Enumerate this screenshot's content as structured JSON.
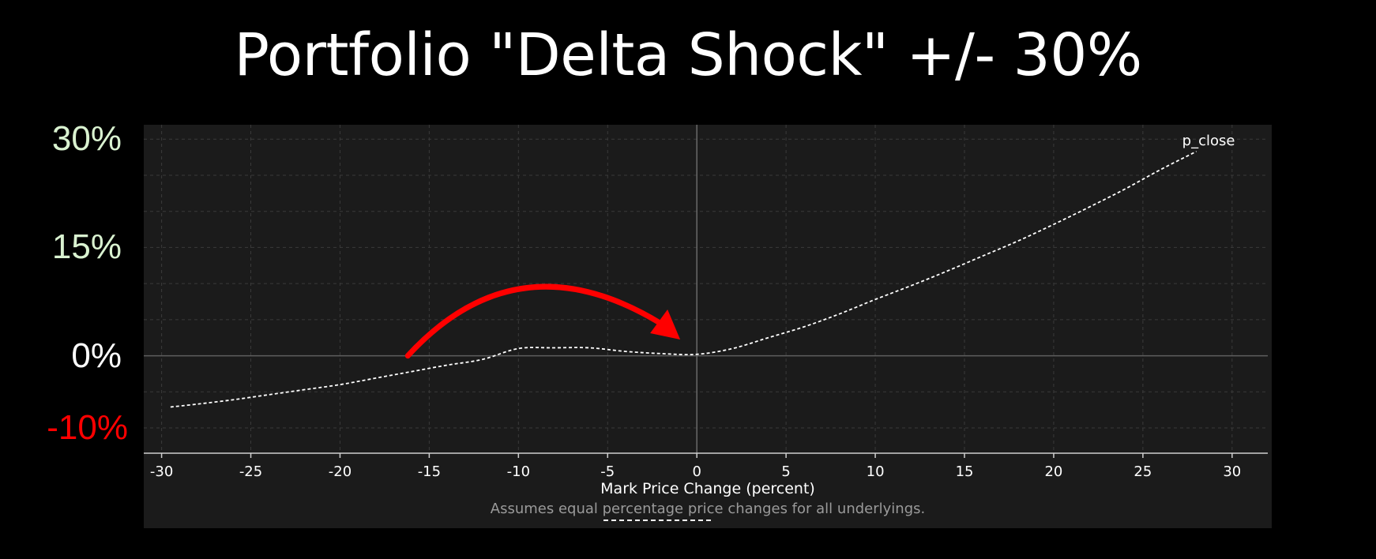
{
  "slide": {
    "title": "Portfolio \"Delta Shock\" +/- 30%",
    "colors": {
      "background": "#000000",
      "panel": "#1b1b1b",
      "positive_label": "#d9f2d0",
      "zero_label": "#ffffff",
      "negative_label": "#ff0000",
      "arrow": "#ff0000",
      "series": "#ffffff"
    }
  },
  "y_labels": [
    {
      "text": "30%",
      "value": 30,
      "color": "#d9f2d0"
    },
    {
      "text": "15%",
      "value": 15,
      "color": "#d9f2d0"
    },
    {
      "text": "0%",
      "value": 0,
      "color": "#ffffff"
    },
    {
      "text": "-10%",
      "value": -10,
      "color": "#ff0000"
    }
  ],
  "chart_data": {
    "type": "line",
    "xlabel": "Mark Price Change (percent)",
    "footnote": "Assumes equal percentage price changes for all underlyings.",
    "xlim": [
      -31,
      32
    ],
    "ylim": [
      -13.5,
      32
    ],
    "x_ticks": [
      -30,
      -25,
      -20,
      -15,
      -10,
      -5,
      0,
      5,
      10,
      15,
      20,
      25,
      30
    ],
    "grid": true,
    "series": [
      {
        "name": "p_close",
        "line_style": "dashed",
        "color": "#ffffff",
        "x": [
          -29.5,
          -28,
          -26,
          -24,
          -22,
          -20,
          -18,
          -16,
          -14,
          -12,
          -10,
          -8,
          -6,
          -4,
          -2,
          0,
          2,
          4,
          6,
          8,
          10,
          12,
          14,
          16,
          18,
          20,
          22,
          24,
          26,
          28
        ],
        "y": [
          -7.1,
          -6.7,
          -6.1,
          -5.4,
          -4.7,
          -4.0,
          -3.1,
          -2.2,
          -1.3,
          -0.5,
          1.0,
          1.1,
          1.1,
          0.6,
          0.3,
          0.2,
          1.0,
          2.5,
          4.0,
          5.8,
          7.8,
          9.7,
          11.7,
          13.8,
          15.9,
          18.2,
          20.6,
          23.1,
          25.8,
          28.3
        ]
      }
    ],
    "annotation": {
      "type": "arrow",
      "from": [
        -16.2,
        0
      ],
      "to": [
        -1.2,
        2.9
      ],
      "peak_y": 8.5,
      "color": "#ff0000"
    }
  }
}
